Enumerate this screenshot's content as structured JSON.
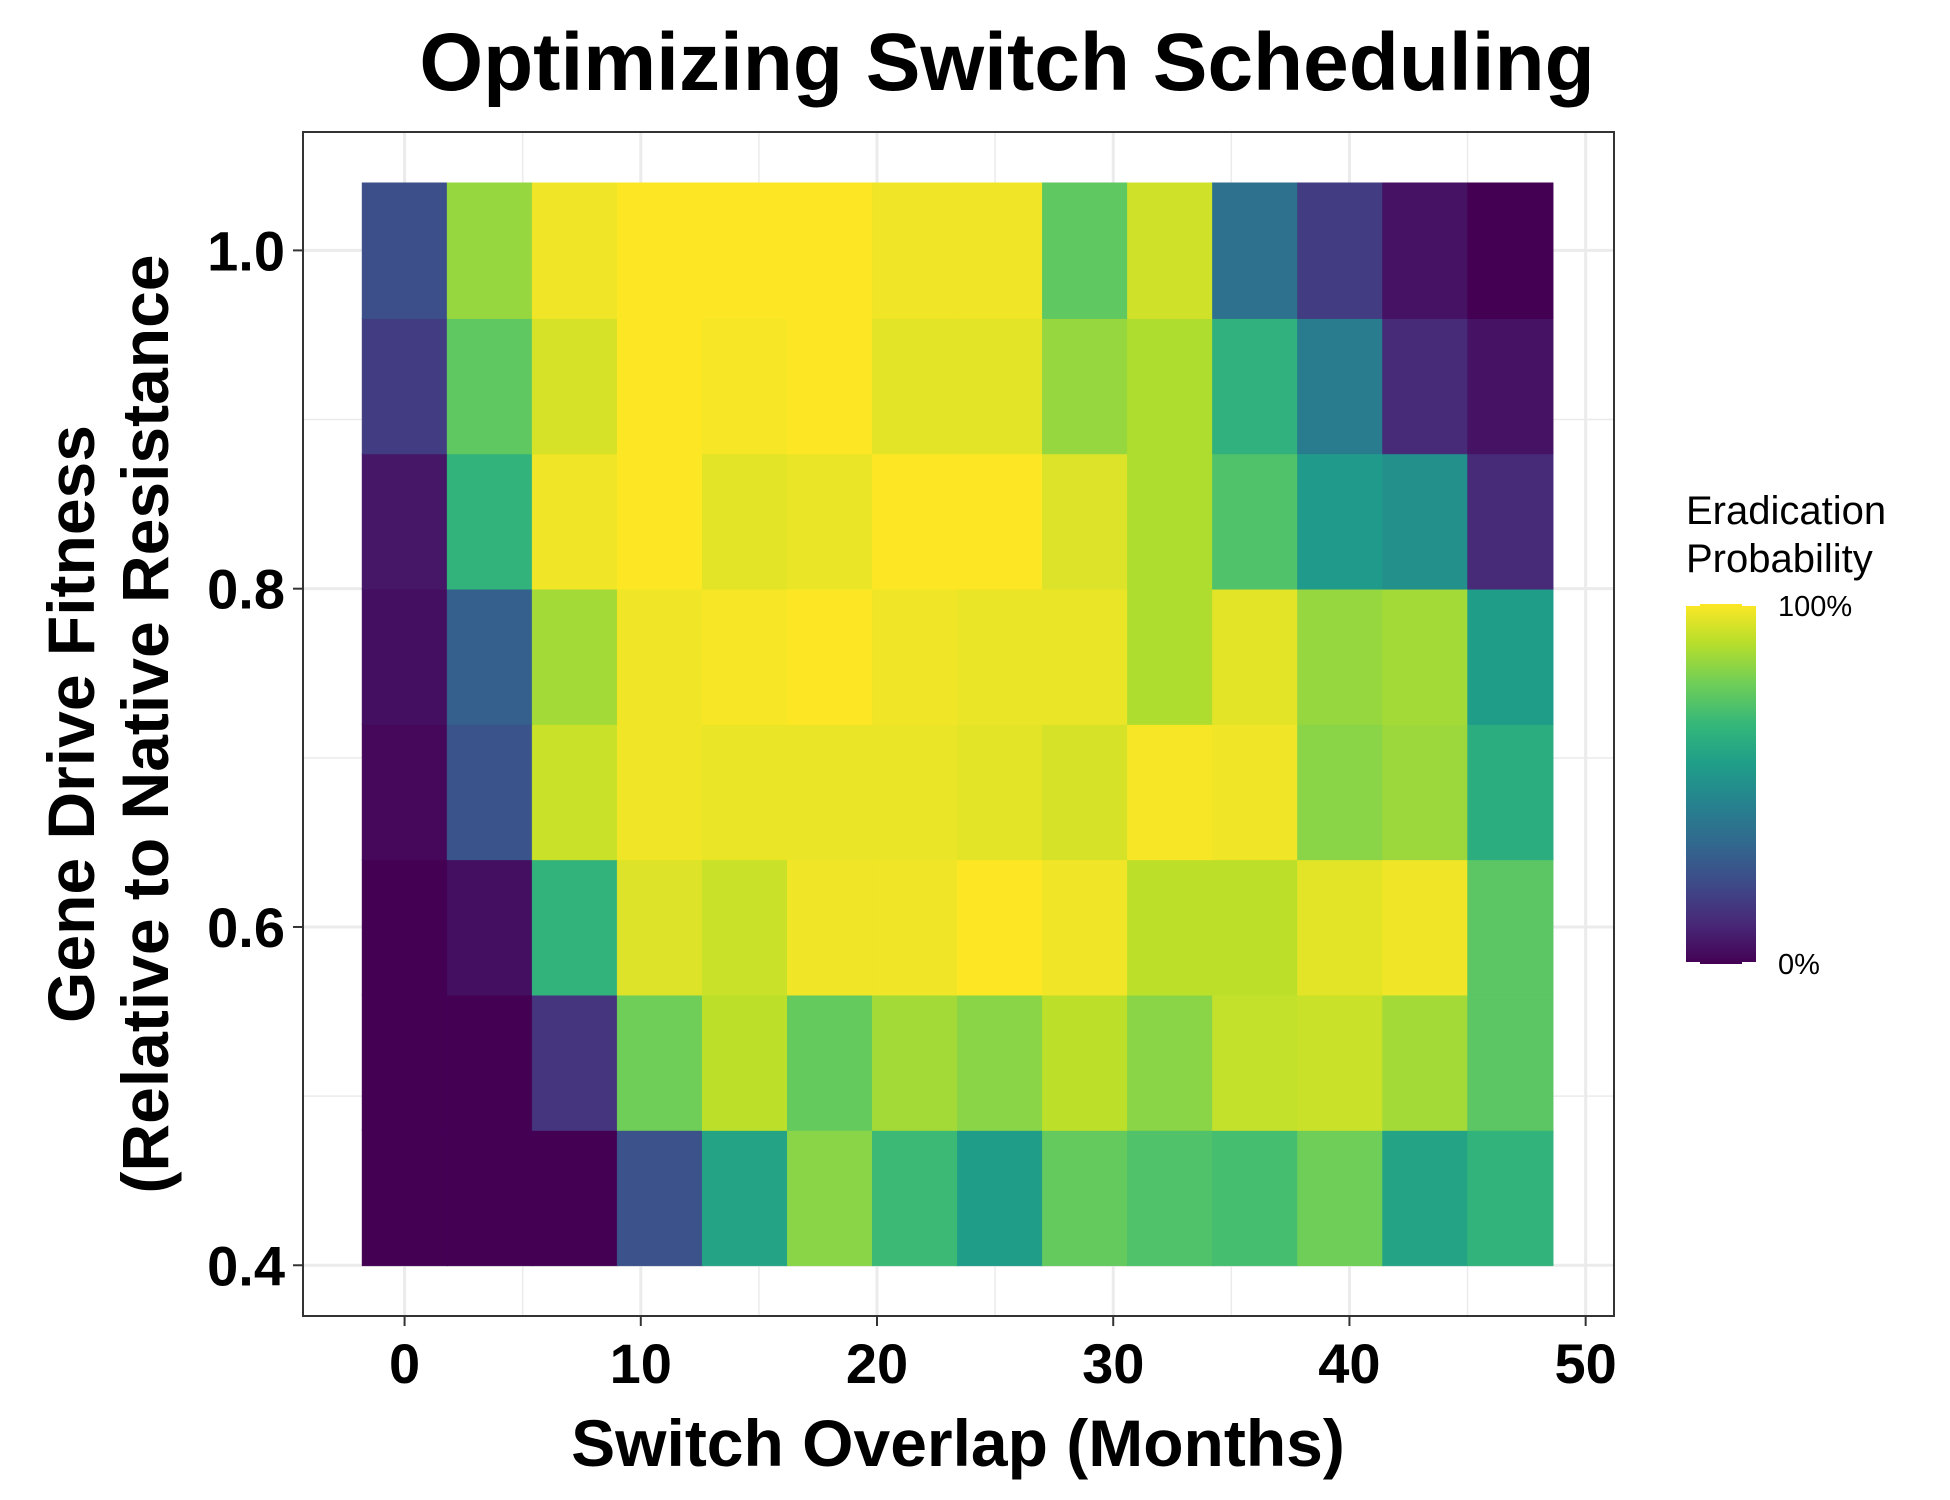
{
  "chart_data": {
    "type": "heatmap",
    "title": "Optimizing Switch Scheduling",
    "xlabel": "Switch Overlap (Months)",
    "ylabel_lines": [
      "Gene Drive Fitness",
      "(Relative to Native Resistance"
    ],
    "xlim": [
      -4.3,
      51.2
    ],
    "ylim": [
      0.37,
      1.07
    ],
    "x_ticks": [
      0,
      10,
      20,
      30,
      40,
      50
    ],
    "y_ticks": [
      0.4,
      0.6,
      0.8,
      1.0
    ],
    "y_tick_labels": [
      "0.4",
      "0.6",
      "0.8",
      "1.0"
    ],
    "x": [
      0,
      3.6,
      7.2,
      10.8,
      14.4,
      18,
      21.6,
      25.2,
      28.8,
      32.4,
      36,
      39.6,
      43.2,
      46.8
    ],
    "x_cell_width": 3.6,
    "y": [
      0.44,
      0.52,
      0.6,
      0.68,
      0.76,
      0.84,
      0.92,
      1.0
    ],
    "y_cell_height": 0.08,
    "z": [
      [
        0,
        0,
        0,
        25,
        58,
        82,
        68,
        55,
        76,
        72,
        70,
        78,
        58,
        65
      ],
      [
        0,
        0,
        15,
        78,
        90,
        76,
        86,
        82,
        90,
        82,
        91,
        92,
        86,
        74
      ],
      [
        0,
        4,
        65,
        95,
        92,
        98,
        98,
        100,
        98,
        90,
        90,
        96,
        98,
        74
      ],
      [
        2,
        26,
        92,
        98,
        97,
        97,
        97,
        96,
        94,
        99,
        98,
        82,
        85,
        62
      ],
      [
        4,
        30,
        86,
        98,
        99,
        100,
        98,
        97,
        97,
        88,
        96,
        84,
        86,
        55
      ],
      [
        6,
        65,
        98,
        100,
        96,
        97,
        100,
        100,
        95,
        88,
        72,
        54,
        50,
        12
      ],
      [
        18,
        75,
        94,
        100,
        99,
        100,
        96,
        96,
        84,
        88,
        64,
        42,
        12,
        5
      ],
      [
        24,
        84,
        98,
        100,
        100,
        100,
        98,
        98,
        75,
        93,
        37,
        18,
        5,
        0
      ]
    ],
    "z_range": [
      0,
      100
    ],
    "colormap": "viridis",
    "colorbar_title_lines": [
      "Eradication",
      "Probability"
    ],
    "colorbar_tick_labels": [
      "100%",
      "0%"
    ],
    "legend_position": "right",
    "grid": true,
    "panel_background": "#ffffff",
    "grid_color": "#ebebeb",
    "border_color": "#333333"
  }
}
